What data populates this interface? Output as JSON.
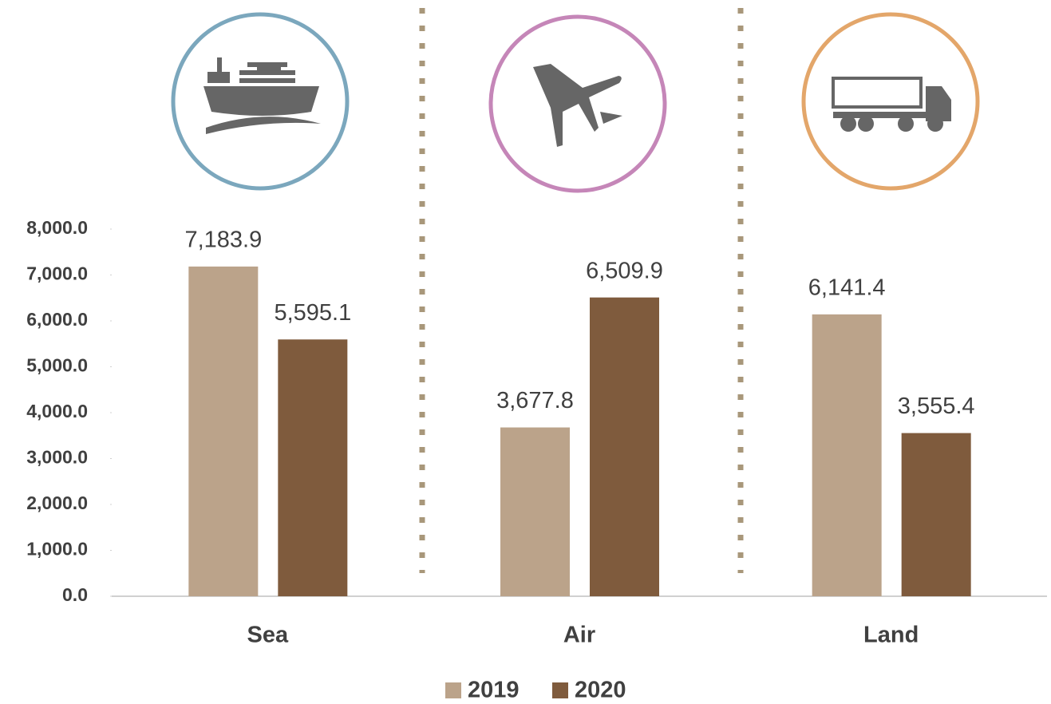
{
  "chart_data": {
    "type": "bar",
    "categories": [
      "Sea",
      "Air",
      "Land"
    ],
    "series": [
      {
        "name": "2019",
        "color": "#bba38a",
        "values": [
          7183.9,
          3677.8,
          6141.4
        ],
        "value_labels": [
          "7,183.9",
          "3,677.8",
          "6,141.4"
        ]
      },
      {
        "name": "2020",
        "color": "#7f5b3d",
        "values": [
          5595.1,
          6509.9,
          3555.4
        ],
        "value_labels": [
          "5,595.1",
          "6,509.9",
          "3,555.4"
        ]
      }
    ],
    "ylim": [
      0,
      8000
    ],
    "yticks": [
      {
        "value": 0,
        "label": "0.0"
      },
      {
        "value": 1000,
        "label": "1,000.0"
      },
      {
        "value": 2000,
        "label": "2,000.0"
      },
      {
        "value": 3000,
        "label": "3,000.0"
      },
      {
        "value": 4000,
        "label": "4,000.0"
      },
      {
        "value": 5000,
        "label": "5,000.0"
      },
      {
        "value": 6000,
        "label": "6,000.0"
      },
      {
        "value": 7000,
        "label": "7,000.0"
      },
      {
        "value": 8000,
        "label": "8,000.0"
      }
    ],
    "legend": "bottom"
  }
}
